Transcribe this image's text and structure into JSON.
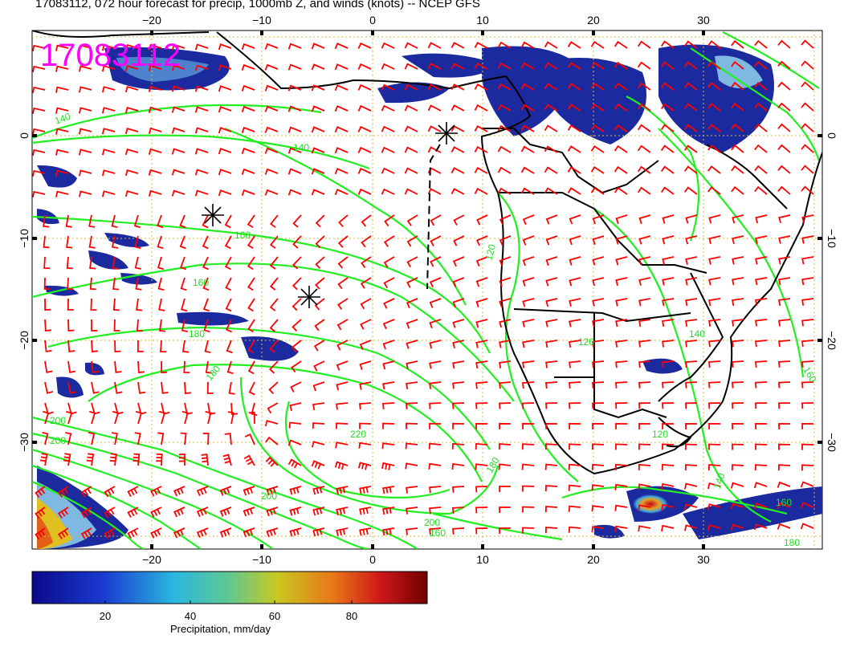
{
  "title": "17083112, 072 hour forecast for precip, 1000mb Z, and winds (knots) -- NCEP GFS",
  "stamp": "17083112",
  "x_ticks": [
    "−20",
    "−10",
    "0",
    "10",
    "20",
    "30"
  ],
  "y_ticks": [
    "0",
    "−10",
    "−20",
    "−30"
  ],
  "contour_labels": [
    "140",
    "140",
    "160",
    "160",
    "180",
    "180",
    "200",
    "200",
    "200",
    "200",
    "220",
    "160",
    "160",
    "160",
    "140",
    "180",
    "120",
    "120",
    "140",
    "120",
    "180"
  ],
  "colorbar": {
    "ticks": [
      "20",
      "40",
      "60",
      "80"
    ],
    "label": "Precipitation, mm/day"
  },
  "colors": {
    "background": "#ffffff",
    "contours": "#22ee22",
    "contour_label": "#22dd22",
    "wind_barbs": "#ff0000",
    "coastline": "#000000",
    "grid": "#d4b83c",
    "stamp": "#ff00ff",
    "precip_low": "#1b2a9e",
    "precip_mid": "#7fb8e0",
    "precip_high": "#c8102e"
  }
}
